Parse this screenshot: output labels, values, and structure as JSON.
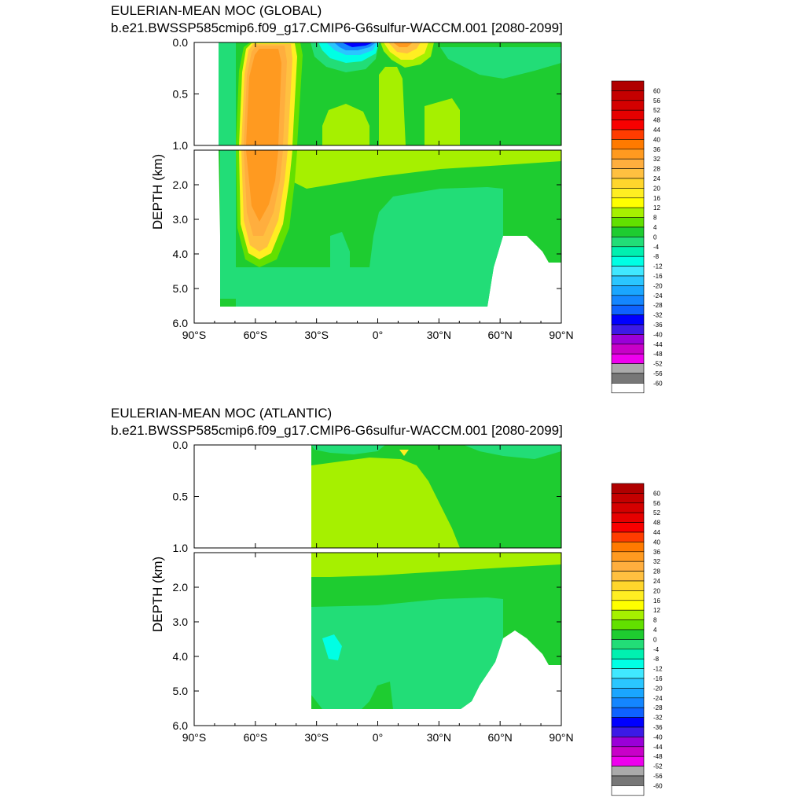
{
  "chart_data": [
    {
      "type": "heatmap",
      "title": "EULERIAN-MEAN MOC (GLOBAL)",
      "subtitle": "b.e21.BWSSP585cmip6.f09_g17.CMIP6-G6sulfur-WACCM.001 [2080-2099]",
      "ylabel": "DEPTH (km)",
      "xlabel": "",
      "xlim": [
        -90,
        90
      ],
      "ylim_upper": [
        0.0,
        1.0
      ],
      "ylim_lower": [
        1.0,
        6.0
      ],
      "x_ticks": [
        "90°S",
        "60°S",
        "30°S",
        "0°",
        "30°N",
        "60°N",
        "90°N"
      ],
      "y_ticks_upper": [
        "0.0",
        "0.5",
        "1.0"
      ],
      "y_ticks_lower": [
        "2.0",
        "3.0",
        "4.0",
        "5.0",
        "6.0"
      ],
      "features": [
        {
          "label": "southern-ocean-positive-cell",
          "x_range": [
            -65,
            -40
          ],
          "depth_range": [
            0,
            4.5
          ],
          "max_value": 38
        },
        {
          "label": "tropical-negative-cell",
          "x": -12,
          "depth": 0.05,
          "min_value": -36
        },
        {
          "label": "tropical-positive-cell",
          "x": 10,
          "depth": 0.05,
          "max_value": 20
        },
        {
          "label": "abyssal-negative-cell",
          "x_range": [
            -10,
            60
          ],
          "depth_range": [
            2.5,
            5.5
          ],
          "value": -4
        }
      ]
    },
    {
      "type": "heatmap",
      "title": "EULERIAN-MEAN MOC (ATLANTIC)",
      "subtitle": "b.e21.BWSSP585cmip6.f09_g17.CMIP6-G6sulfur-WACCM.001 [2080-2099]",
      "ylabel": "DEPTH (km)",
      "xlabel": "",
      "xlim": [
        -90,
        90
      ],
      "ylim_upper": [
        0.0,
        1.0
      ],
      "ylim_lower": [
        1.0,
        6.0
      ],
      "x_ticks": [
        "90°S",
        "60°S",
        "30°S",
        "0°",
        "30°N",
        "60°N",
        "90°N"
      ],
      "y_ticks_upper": [
        "0.0",
        "0.5",
        "1.0"
      ],
      "y_ticks_lower": [
        "2.0",
        "3.0",
        "4.0",
        "5.0",
        "6.0"
      ],
      "features": [
        {
          "label": "nadw-upper-cell",
          "x_range": [
            -34,
            40
          ],
          "depth_range": [
            0.1,
            1.0
          ],
          "value": 12
        },
        {
          "label": "deep-negative-cell",
          "x_range": [
            -34,
            60
          ],
          "depth_range": [
            2.5,
            5.5
          ],
          "value": -4
        }
      ]
    }
  ],
  "colorbar": {
    "labels": [
      "60",
      "56",
      "52",
      "48",
      "44",
      "40",
      "36",
      "32",
      "28",
      "24",
      "20",
      "16",
      "12",
      "8",
      "4",
      "0",
      "-4",
      "-8",
      "-12",
      "-16",
      "-20",
      "-24",
      "-28",
      "-32",
      "-36",
      "-40",
      "-44",
      "-48",
      "-52",
      "-56",
      "-60"
    ],
    "colors": [
      "#b00000",
      "#c40000",
      "#d40000",
      "#e60000",
      "#f80000",
      "#ff3c00",
      "#ff7a00",
      "#ff9a20",
      "#ffae3e",
      "#ffc040",
      "#ffd62c",
      "#ffee22",
      "#ffff00",
      "#a6f000",
      "#62e000",
      "#1ecc30",
      "#22dd77",
      "#00f0b0",
      "#00ffe4",
      "#40e8ff",
      "#2ac6ff",
      "#1aa6ff",
      "#1486ff",
      "#0e62ff",
      "#0000ff",
      "#3c1ae6",
      "#9a00d8",
      "#c800c8",
      "#ee00ee",
      "#aaaaaa",
      "#777777",
      "#ffffff"
    ]
  }
}
